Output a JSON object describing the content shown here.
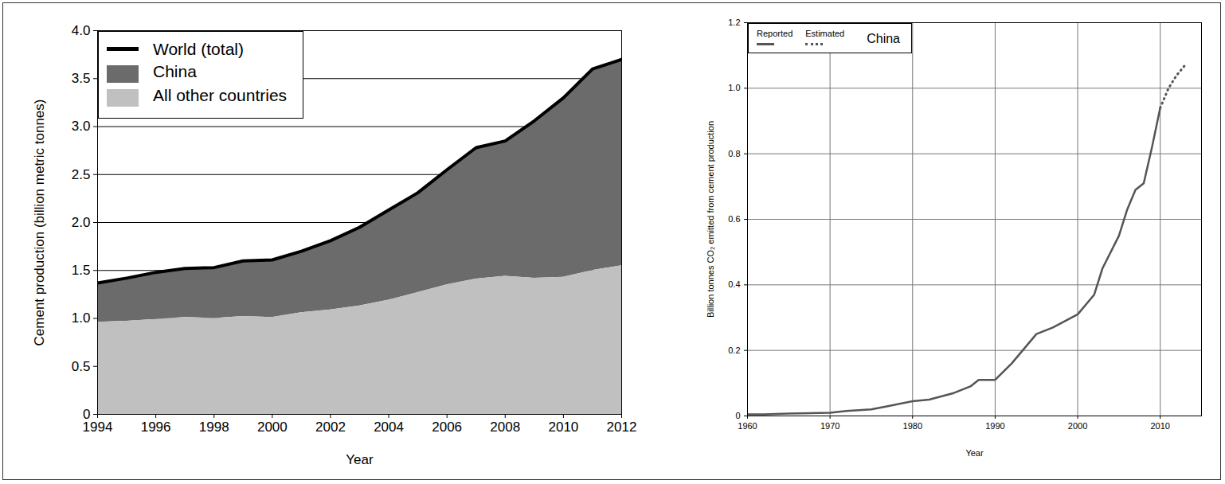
{
  "chart_data": [
    {
      "type": "area",
      "stacked": true,
      "xlabel": "Year",
      "ylabel": "Cement production (billion metric tonnes)",
      "x": [
        1994,
        1995,
        1996,
        1997,
        1998,
        1999,
        2000,
        2001,
        2002,
        2003,
        2004,
        2005,
        2006,
        2007,
        2008,
        2009,
        2010,
        2011,
        2012
      ],
      "xlim": [
        1994,
        2012
      ],
      "xticks": [
        1994,
        1996,
        1998,
        2000,
        2002,
        2004,
        2006,
        2008,
        2010,
        2012
      ],
      "ylim": [
        0,
        4
      ],
      "yticks": [
        0,
        0.5,
        {
          "value": 1,
          "label": "1.0"
        },
        1.5,
        {
          "value": 2,
          "label": "2.0"
        },
        2.5,
        {
          "value": 3,
          "label": "3.0"
        },
        3.5,
        {
          "value": 4,
          "label": "4.0"
        }
      ],
      "grid": true,
      "legend": "upper left",
      "series": [
        {
          "name": "World (total)",
          "type": "line",
          "color": "#000000",
          "values": [
            1.37,
            1.42,
            1.48,
            1.52,
            1.53,
            1.6,
            1.61,
            1.7,
            1.81,
            1.95,
            2.13,
            2.31,
            2.55,
            2.78,
            2.85,
            3.06,
            3.3,
            3.6,
            3.7
          ]
        },
        {
          "name": "China",
          "type": "area",
          "color": "#6b6b6b",
          "values": [
            0.41,
            0.45,
            0.49,
            0.51,
            0.53,
            0.58,
            0.6,
            0.64,
            0.72,
            0.82,
            0.94,
            1.04,
            1.2,
            1.37,
            1.41,
            1.64,
            1.87,
            2.1,
            2.15
          ]
        },
        {
          "name": "All other countries",
          "type": "area",
          "color": "#c0c0c0",
          "values": [
            0.96,
            0.97,
            0.99,
            1.01,
            1.0,
            1.02,
            1.01,
            1.06,
            1.09,
            1.13,
            1.19,
            1.27,
            1.35,
            1.41,
            1.44,
            1.42,
            1.43,
            1.5,
            1.55
          ]
        }
      ]
    },
    {
      "type": "line",
      "xlabel": "Year",
      "ylabel": "Billion tonnes CO₂ emitted from cement production",
      "legend_title": "China",
      "xlim": [
        1960,
        2015
      ],
      "xticks": [
        1960,
        1970,
        1980,
        1990,
        2000,
        2010
      ],
      "ylim": [
        0,
        1.2
      ],
      "yticks": [
        0,
        0.2,
        0.4,
        0.6,
        0.8,
        {
          "value": 1,
          "label": "1.0"
        },
        1.2
      ],
      "grid": true,
      "legend": "upper left",
      "series": [
        {
          "name": "Reported",
          "color": "#555555",
          "line_style": "solid",
          "x": [
            1960,
            1962,
            1965,
            1970,
            1972,
            1975,
            1977,
            1980,
            1982,
            1985,
            1987,
            1988,
            1990,
            1992,
            1995,
            1997,
            2000,
            2002,
            2003,
            2005,
            2006,
            2007,
            2008,
            2009,
            2010
          ],
          "values": [
            0.005,
            0.005,
            0.007,
            0.01,
            0.015,
            0.02,
            0.03,
            0.045,
            0.05,
            0.07,
            0.09,
            0.11,
            0.11,
            0.16,
            0.25,
            0.27,
            0.31,
            0.37,
            0.45,
            0.55,
            0.63,
            0.69,
            0.71,
            0.82,
            0.94
          ]
        },
        {
          "name": "Estimated",
          "color": "#555555",
          "line_style": "dotted",
          "x": [
            2010,
            2011,
            2012,
            2013
          ],
          "values": [
            0.94,
            1.0,
            1.04,
            1.07
          ]
        }
      ]
    }
  ]
}
